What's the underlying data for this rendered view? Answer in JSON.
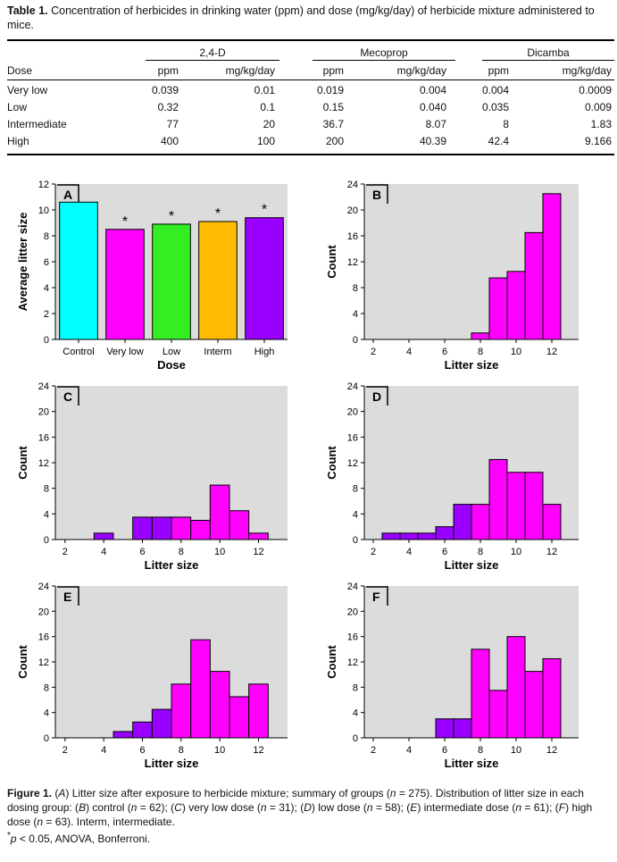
{
  "table": {
    "label": "Table 1.",
    "caption": "Concentration of herbicides in drinking water (ppm) and dose (mg/kg/day) of herbicide mixture administered to mice.",
    "row_header": "Dose",
    "groups": [
      "2,4-D",
      "Mecoprop",
      "Dicamba"
    ],
    "subheaders": [
      "ppm",
      "mg/kg/day",
      "ppm",
      "mg/kg/day",
      "ppm",
      "mg/kg/day"
    ],
    "rows": [
      {
        "dose": "Very low",
        "values": [
          "0.039",
          "0.01",
          "0.019",
          "0.004",
          "0.004",
          "0.0009"
        ]
      },
      {
        "dose": "Low",
        "values": [
          "0.32",
          "0.1",
          "0.15",
          "0.040",
          "0.035",
          "0.009"
        ]
      },
      {
        "dose": "Intermediate",
        "values": [
          "77",
          "20",
          "36.7",
          "8.07",
          "8",
          "1.83"
        ]
      },
      {
        "dose": "High",
        "values": [
          "400",
          "100",
          "200",
          "40.39",
          "42.4",
          "9.166"
        ]
      }
    ]
  },
  "chart_data": [
    {
      "panel": "A",
      "type": "bar",
      "categories": [
        "Control",
        "Very low",
        "Low",
        "Interm",
        "High"
      ],
      "values": [
        10.6,
        8.5,
        8.9,
        9.1,
        9.4
      ],
      "significant": [
        false,
        true,
        true,
        true,
        true
      ],
      "sig_marker": "*",
      "colors": [
        "#00ffff",
        "#ff00ff",
        "#33ee22",
        "#ffbb00",
        "#9900ff"
      ],
      "xlabel": "Dose",
      "ylabel": "Average litter size",
      "ylim": [
        0,
        12
      ],
      "yticks": [
        "0",
        "2",
        "4",
        "6",
        "8",
        "10",
        "12"
      ]
    },
    {
      "panel": "B",
      "type": "histogram",
      "bins": [
        {
          "x": 8,
          "count": 1,
          "color": "#ff00ff"
        },
        {
          "x": 9,
          "count": 9.5,
          "color": "#ff00ff"
        },
        {
          "x": 10,
          "count": 10.5,
          "color": "#ff00ff"
        },
        {
          "x": 11,
          "count": 16.5,
          "color": "#ff00ff"
        },
        {
          "x": 12,
          "count": 22.5,
          "color": "#ff00ff"
        }
      ],
      "xlabel": "Litter size",
      "ylabel": "Count",
      "xticks": [
        "2",
        "4",
        "6",
        "8",
        "10",
        "12"
      ],
      "yticks": [
        "0",
        "4",
        "8",
        "12",
        "16",
        "20",
        "24"
      ],
      "xlim": [
        1.5,
        13.5
      ],
      "ylim": [
        0,
        24
      ]
    },
    {
      "panel": "C",
      "type": "histogram",
      "bins": [
        {
          "x": 4,
          "count": 1,
          "color": "#9900ff"
        },
        {
          "x": 6,
          "count": 3.5,
          "color": "#9900ff"
        },
        {
          "x": 7,
          "count": 3.5,
          "color": "#9900ff"
        },
        {
          "x": 8,
          "count": 3.5,
          "color": "#ff00ff"
        },
        {
          "x": 9,
          "count": 3,
          "color": "#ff00ff"
        },
        {
          "x": 10,
          "count": 8.5,
          "color": "#ff00ff"
        },
        {
          "x": 11,
          "count": 4.5,
          "color": "#ff00ff"
        },
        {
          "x": 12,
          "count": 1,
          "color": "#ff00ff"
        }
      ],
      "xlabel": "Litter size",
      "ylabel": "Count",
      "xticks": [
        "2",
        "4",
        "6",
        "8",
        "10",
        "12"
      ],
      "yticks": [
        "0",
        "4",
        "8",
        "12",
        "16",
        "20",
        "24"
      ],
      "xlim": [
        1.5,
        13.5
      ],
      "ylim": [
        0,
        24
      ]
    },
    {
      "panel": "D",
      "type": "histogram",
      "bins": [
        {
          "x": 3,
          "count": 1,
          "color": "#9900ff"
        },
        {
          "x": 4,
          "count": 1,
          "color": "#9900ff"
        },
        {
          "x": 5,
          "count": 1,
          "color": "#9900ff"
        },
        {
          "x": 6,
          "count": 2,
          "color": "#9900ff"
        },
        {
          "x": 7,
          "count": 5.5,
          "color": "#9900ff"
        },
        {
          "x": 8,
          "count": 5.5,
          "color": "#ff00ff"
        },
        {
          "x": 9,
          "count": 12.5,
          "color": "#ff00ff"
        },
        {
          "x": 10,
          "count": 10.5,
          "color": "#ff00ff"
        },
        {
          "x": 11,
          "count": 10.5,
          "color": "#ff00ff"
        },
        {
          "x": 12,
          "count": 5.5,
          "color": "#ff00ff"
        }
      ],
      "xlabel": "Litter size",
      "ylabel": "Count",
      "xticks": [
        "2",
        "4",
        "6",
        "8",
        "10",
        "12"
      ],
      "yticks": [
        "0",
        "4",
        "8",
        "12",
        "16",
        "20",
        "24"
      ],
      "xlim": [
        1.5,
        13.5
      ],
      "ylim": [
        0,
        24
      ]
    },
    {
      "panel": "E",
      "type": "histogram",
      "bins": [
        {
          "x": 5,
          "count": 1,
          "color": "#9900ff"
        },
        {
          "x": 6,
          "count": 2.5,
          "color": "#9900ff"
        },
        {
          "x": 7,
          "count": 4.5,
          "color": "#9900ff"
        },
        {
          "x": 8,
          "count": 8.5,
          "color": "#ff00ff"
        },
        {
          "x": 9,
          "count": 15.5,
          "color": "#ff00ff"
        },
        {
          "x": 10,
          "count": 10.5,
          "color": "#ff00ff"
        },
        {
          "x": 11,
          "count": 6.5,
          "color": "#ff00ff"
        },
        {
          "x": 12,
          "count": 8.5,
          "color": "#ff00ff"
        }
      ],
      "xlabel": "Litter size",
      "ylabel": "Count",
      "xticks": [
        "2",
        "4",
        "6",
        "8",
        "10",
        "12"
      ],
      "yticks": [
        "0",
        "4",
        "8",
        "12",
        "16",
        "20",
        "24"
      ],
      "xlim": [
        1.5,
        13.5
      ],
      "ylim": [
        0,
        24
      ]
    },
    {
      "panel": "F",
      "type": "histogram",
      "bins": [
        {
          "x": 6,
          "count": 3,
          "color": "#9900ff"
        },
        {
          "x": 7,
          "count": 3,
          "color": "#9900ff"
        },
        {
          "x": 8,
          "count": 14,
          "color": "#ff00ff"
        },
        {
          "x": 9,
          "count": 7.5,
          "color": "#ff00ff"
        },
        {
          "x": 10,
          "count": 16,
          "color": "#ff00ff"
        },
        {
          "x": 11,
          "count": 10.5,
          "color": "#ff00ff"
        },
        {
          "x": 12,
          "count": 12.5,
          "color": "#ff00ff"
        }
      ],
      "xlabel": "Litter size",
      "ylabel": "Count",
      "xticks": [
        "2",
        "4",
        "6",
        "8",
        "10",
        "12"
      ],
      "yticks": [
        "0",
        "4",
        "8",
        "12",
        "16",
        "20",
        "24"
      ],
      "xlim": [
        1.5,
        13.5
      ],
      "ylim": [
        0,
        24
      ]
    }
  ],
  "figure": {
    "label": "Figure 1.",
    "caption_parts": [
      {
        "t": " ("
      },
      {
        "t": "A",
        "i": true
      },
      {
        "t": ") Litter size after exposure to herbicide mixture; summary of groups ("
      },
      {
        "t": "n",
        "i": true
      },
      {
        "t": " = 275). Distribution of litter size in each dosing group: ("
      },
      {
        "t": "B",
        "i": true
      },
      {
        "t": ") control ("
      },
      {
        "t": "n",
        "i": true
      },
      {
        "t": " = 62); ("
      },
      {
        "t": "C",
        "i": true
      },
      {
        "t": ") very low dose ("
      },
      {
        "t": "n",
        "i": true
      },
      {
        "t": " = 31); ("
      },
      {
        "t": "D",
        "i": true
      },
      {
        "t": ") low dose ("
      },
      {
        "t": "n",
        "i": true
      },
      {
        "t": " = 58); ("
      },
      {
        "t": "E",
        "i": true
      },
      {
        "t": ") intermediate dose ("
      },
      {
        "t": "n",
        "i": true
      },
      {
        "t": " = 61); ("
      },
      {
        "t": "F",
        "i": true
      },
      {
        "t": ") high dose ("
      },
      {
        "t": "n",
        "i": true
      },
      {
        "t": " = 63). Interm, intermediate."
      }
    ],
    "footnote_marker": "*",
    "footnote_p": "p",
    "footnote_rest": " < 0.05, ANOVA, Bonferroni."
  },
  "colors": {
    "panel_bg": "#dcdcdc",
    "bar_outline": "#000000"
  }
}
